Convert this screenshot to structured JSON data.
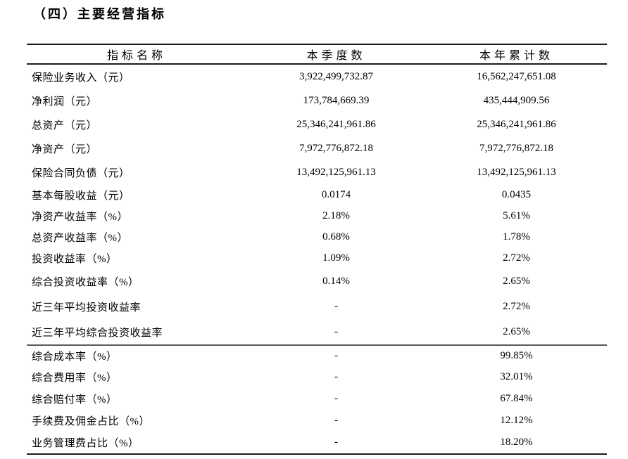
{
  "section": {
    "title": "（四）主要经营指标"
  },
  "colors": {
    "text": "#000000",
    "background": "#ffffff",
    "rule": "#1c1c1c",
    "group_separator": "#5a5a5a"
  },
  "table": {
    "headers": [
      "指标名称",
      "本季度数",
      "本年累计数"
    ],
    "rows": [
      {
        "label": "保险业务收入（元）",
        "quarter": "3,922,499,732.87",
        "ytd": "16,562,247,651.08",
        "separator_before": false
      },
      {
        "label": "净利润（元）",
        "quarter": "173,784,669.39",
        "ytd": "435,444,909.56",
        "separator_before": false
      },
      {
        "label": "总资产（元）",
        "quarter": "25,346,241,961.86",
        "ytd": "25,346,241,961.86",
        "separator_before": false
      },
      {
        "label": "净资产（元）",
        "quarter": "7,972,776,872.18",
        "ytd": "7,972,776,872.18",
        "separator_before": false
      },
      {
        "label": "保险合同负债（元）",
        "quarter": "13,492,125,961.13",
        "ytd": "13,492,125,961.13",
        "separator_before": false
      },
      {
        "label": "基本每股收益（元）",
        "quarter": "0.0174",
        "ytd": "0.0435",
        "separator_before": false
      },
      {
        "label": "净资产收益率（%）",
        "quarter": "2.18%",
        "ytd": "5.61%",
        "separator_before": false
      },
      {
        "label": "总资产收益率（%）",
        "quarter": "0.68%",
        "ytd": "1.78%",
        "separator_before": false
      },
      {
        "label": "投资收益率（%）",
        "quarter": "1.09%",
        "ytd": "2.72%",
        "separator_before": false
      },
      {
        "label": "综合投资收益率（%）",
        "quarter": "0.14%",
        "ytd": "2.65%",
        "separator_before": false
      },
      {
        "label": "近三年平均投资收益率",
        "quarter": "-",
        "ytd": "2.72%",
        "separator_before": false
      },
      {
        "label": "近三年平均综合投资收益率",
        "quarter": "-",
        "ytd": "2.65%",
        "separator_before": false
      },
      {
        "label": "综合成本率（%）",
        "quarter": "-",
        "ytd": "99.85%",
        "separator_before": true
      },
      {
        "label": "综合费用率（%）",
        "quarter": "-",
        "ytd": "32.01%",
        "separator_before": false
      },
      {
        "label": "综合赔付率（%）",
        "quarter": "-",
        "ytd": "67.84%",
        "separator_before": false
      },
      {
        "label": "手续费及佣金占比（%）",
        "quarter": "-",
        "ytd": "12.12%",
        "separator_before": false
      },
      {
        "label": "业务管理费占比（%）",
        "quarter": "-",
        "ytd": "18.20%",
        "separator_before": false
      }
    ]
  }
}
